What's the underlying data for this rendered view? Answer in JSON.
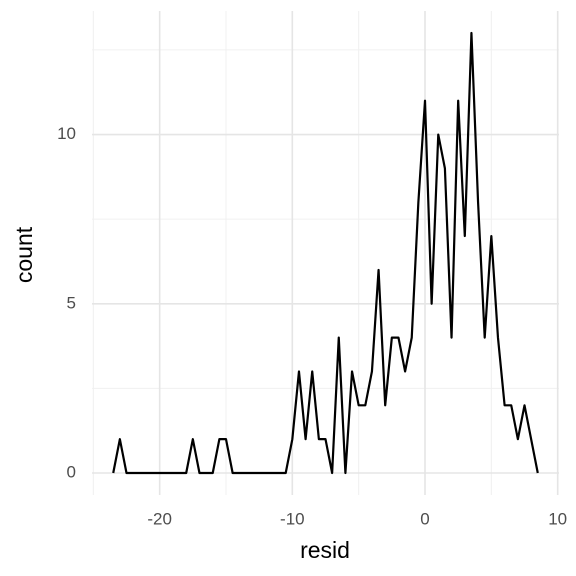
{
  "chart_data": {
    "type": "line",
    "xlabel": "resid",
    "ylabel": "count",
    "x": [
      -23.5,
      -23,
      -22.5,
      -22,
      -21.5,
      -21,
      -20.5,
      -20,
      -19.5,
      -19,
      -18.5,
      -18,
      -17.5,
      -17,
      -16.5,
      -16,
      -15.5,
      -15,
      -14.5,
      -14,
      -13.5,
      -13,
      -12.5,
      -12,
      -11.5,
      -11,
      -10.5,
      -10,
      -9.5,
      -9,
      -8.5,
      -8,
      -7.5,
      -7,
      -6.5,
      -6,
      -5.5,
      -5,
      -4.5,
      -4,
      -3.5,
      -3,
      -2.5,
      -2,
      -1.5,
      -1,
      -0.5,
      0,
      0.5,
      1,
      1.5,
      2,
      2.5,
      3,
      3.5,
      4,
      4.5,
      5,
      5.5,
      6,
      6.5,
      7,
      7.5,
      8,
      8.5
    ],
    "series": [
      {
        "color": "#000000",
        "values": [
          0,
          1,
          0,
          0,
          0,
          0,
          0,
          0,
          0,
          0,
          0,
          0,
          1,
          0,
          0,
          0,
          1,
          1,
          0,
          0,
          0,
          0,
          0,
          0,
          0,
          0,
          0,
          1,
          3,
          1,
          3,
          1,
          1,
          0,
          4,
          0,
          3,
          2,
          2,
          3,
          6,
          2,
          4,
          4,
          3,
          4,
          8,
          11,
          5,
          10,
          9,
          4,
          11,
          7,
          13,
          8,
          4,
          7,
          4,
          2,
          2,
          1,
          2,
          1,
          0
        ]
      }
    ],
    "xlim": [
      -25.1,
      10.1
    ],
    "ylim": [
      -0.65,
      13.65
    ],
    "xticks": [
      -20,
      -10,
      0,
      10
    ],
    "yticks": [
      0,
      5,
      10
    ],
    "minor_xticks": [
      -25,
      -15,
      -5,
      5
    ],
    "minor_yticks": [
      2.5,
      7.5,
      12.5
    ],
    "grid": true
  }
}
